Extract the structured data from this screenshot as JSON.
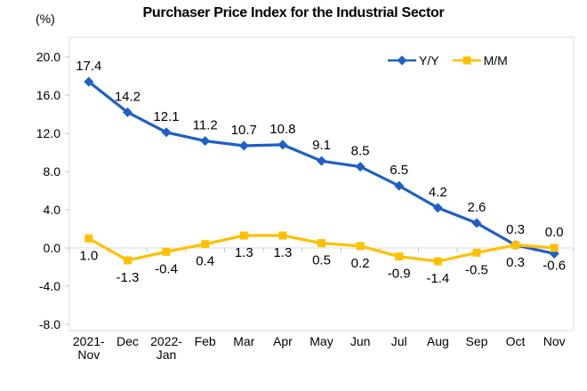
{
  "title": "Purchaser Price Index for the Industrial Sector",
  "unit_label": "(%)",
  "chart_data": {
    "type": "line",
    "categories": [
      [
        "2021-",
        "Nov"
      ],
      [
        "Dec"
      ],
      [
        "2022-",
        "Jan"
      ],
      [
        "Feb"
      ],
      [
        "Mar"
      ],
      [
        "Apr"
      ],
      [
        "May"
      ],
      [
        "Jun"
      ],
      [
        "Jul"
      ],
      [
        "Aug"
      ],
      [
        "Sep"
      ],
      [
        "Oct"
      ],
      [
        "Nov"
      ]
    ],
    "series": [
      {
        "name": "Y/Y",
        "color": "#1E5FC8",
        "marker": "diamond",
        "values": [
          17.4,
          14.2,
          12.1,
          11.2,
          10.7,
          10.8,
          9.1,
          8.5,
          6.5,
          4.2,
          2.6,
          0.3,
          -0.6
        ],
        "data_labels": [
          "17.4",
          "14.2",
          "12.1",
          "11.2",
          "10.7",
          "10.8",
          "9.1",
          "8.5",
          "6.5",
          "4.2",
          "2.6",
          "0.3",
          "-0.6"
        ],
        "label_positions": [
          "above",
          "above",
          "above",
          "above",
          "above",
          "above",
          "above",
          "above",
          "above",
          "above",
          "above",
          "above",
          "below"
        ]
      },
      {
        "name": "M/M",
        "color": "#FFC000",
        "marker": "square",
        "values": [
          1.0,
          -1.3,
          -0.4,
          0.4,
          1.3,
          1.3,
          0.5,
          0.2,
          -0.9,
          -1.4,
          -0.5,
          0.3,
          0.0
        ],
        "data_labels": [
          "1.0",
          "-1.3",
          "-0.4",
          "0.4",
          "1.3",
          "1.3",
          "0.5",
          "0.2",
          "-0.9",
          "-1.4",
          "-0.5",
          "0.3",
          "0.0"
        ],
        "label_positions": [
          "below",
          "below",
          "below",
          "below",
          "below",
          "below",
          "below",
          "below",
          "below",
          "below",
          "below",
          "below",
          "above"
        ]
      }
    ],
    "ylim": [
      -8,
      20
    ],
    "ytick_step": 4,
    "ytick_labels": [
      "20.0",
      "16.0",
      "12.0",
      "8.0",
      "4.0",
      "0.0",
      "-4.0",
      "-8.0"
    ],
    "grid": false,
    "legend_position": "top-right-inside",
    "colors": {
      "plot_border": "#DDDDDD",
      "zero_line": "#D9D9D9",
      "tick": "#C6C6C6",
      "text": "#000000"
    }
  }
}
